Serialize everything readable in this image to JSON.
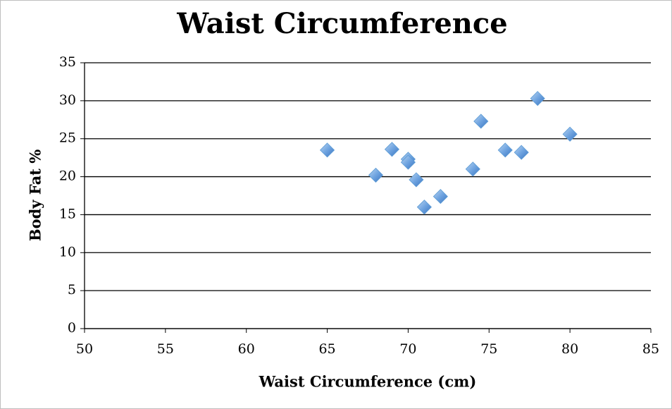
{
  "chart_data": {
    "type": "scatter",
    "title": "Waist Circumference",
    "x_label": "Waist Circumference (cm)",
    "y_label": "Body Fat %",
    "x": [
      65,
      68,
      69,
      70,
      70,
      70.5,
      71,
      72,
      74,
      74.5,
      76,
      77,
      78,
      80
    ],
    "values": [
      23.5,
      20.2,
      23.6,
      22.3,
      21.9,
      19.6,
      16.0,
      17.4,
      21.0,
      27.3,
      23.5,
      23.2,
      30.3,
      25.6
    ],
    "color": "#5b9bd5",
    "xlim": [
      50,
      85
    ],
    "xticks": [
      50,
      55,
      60,
      65,
      70,
      75,
      80,
      85
    ],
    "ylim": [
      0,
      35
    ],
    "yticks": [
      0,
      5,
      10,
      15,
      20,
      25,
      30,
      35
    ],
    "grid": true
  }
}
